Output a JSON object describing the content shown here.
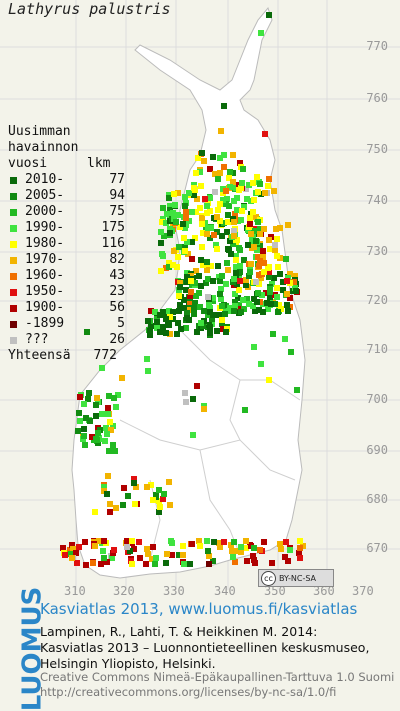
{
  "title": "Lathyrus palustris",
  "legend": {
    "header": [
      "Uusimman",
      "havainnon",
      "vuosi"
    ],
    "count_header": "lkm",
    "rows": [
      {
        "label": "2010-",
        "count": "77",
        "color": "#0a6a0a"
      },
      {
        "label": "2005-",
        "count": "94",
        "color": "#118a11"
      },
      {
        "label": "2000-",
        "count": "75",
        "color": "#22b922"
      },
      {
        "label": "1990-",
        "count": "175",
        "color": "#3fe33f"
      },
      {
        "label": "1980-",
        "count": "116",
        "color": "#ffff00"
      },
      {
        "label": "1970-",
        "count": "82",
        "color": "#f2b400"
      },
      {
        "label": "1960-",
        "count": "43",
        "color": "#f07000"
      },
      {
        "label": "1950-",
        "count": "23",
        "color": "#e01010"
      },
      {
        "label": "1900-",
        "count": "56",
        "color": "#b00000"
      },
      {
        "label": "-1899",
        "count": "5",
        "color": "#700000"
      },
      {
        "label": "???",
        "count": "26",
        "color": "#c0c0c0"
      }
    ],
    "total_label": "Yhteensä",
    "total_count": "772"
  },
  "y_axis": [
    "770",
    "760",
    "750",
    "740",
    "730",
    "720",
    "710",
    "700",
    "690",
    "680",
    "670"
  ],
  "x_axis": [
    "310",
    "320",
    "330",
    "340",
    "350",
    "360",
    "370"
  ],
  "cc_badge": "BY-NC-SA",
  "footer": {
    "logo": "LUOMUS",
    "headline": "Kasviatlas 2013, www.luomus.fi/kasviatlas",
    "citation_line1": "Lampinen, R., Lahti, T. & Heikkinen M. 2014:",
    "citation_line2": "Kasviatlas 2013 – Luonnontieteellinen keskusmuseo,",
    "citation_line3": "Helsingin Yliopisto, Helsinki.",
    "license_line1": "Creative Commons Nimeä-Epäkaupallinen-Tarttuva 1.0 Suomi",
    "license_line2": "http://creativecommons.org/licenses/by-nc-sa/1.0/fi"
  }
}
